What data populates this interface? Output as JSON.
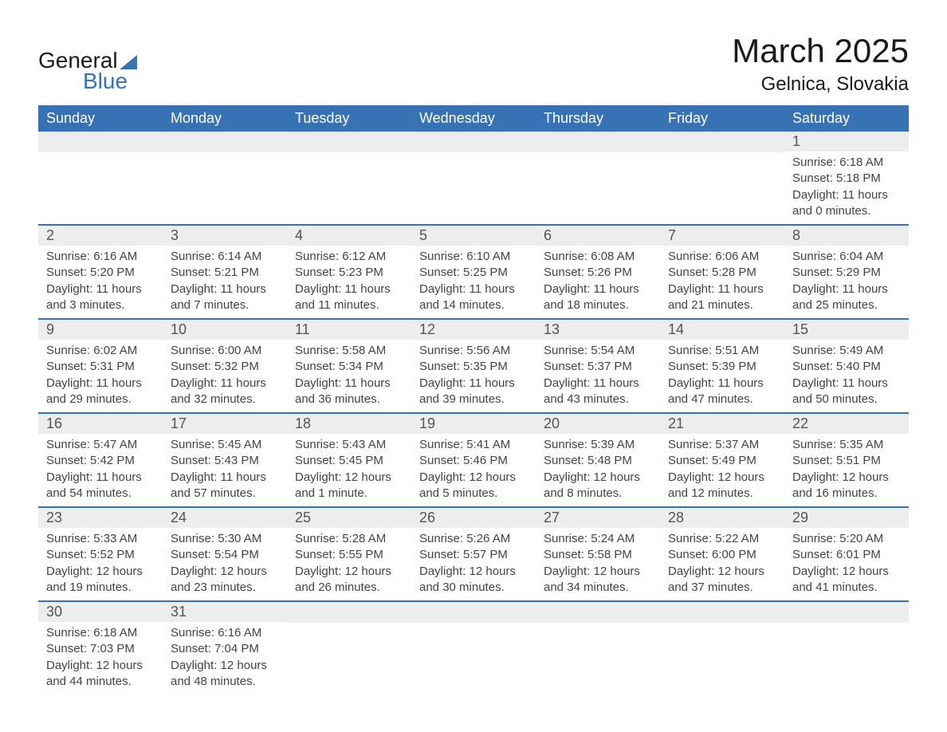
{
  "logo": {
    "text1": "General",
    "text2": "Blue",
    "triangle_color": "#3773b4",
    "text1_color": "#1a1a1a",
    "text2_color": "#3773b4"
  },
  "title": "March 2025",
  "location": "Gelnica, Slovakia",
  "colors": {
    "header_bg": "#3773b4",
    "header_text": "#ffffff",
    "daynum_bg": "#ededed",
    "daynum_text": "#555555",
    "body_text": "#444444",
    "row_border": "#3773b4",
    "background": "#ffffff"
  },
  "fonts": {
    "title_size": 42,
    "location_size": 24,
    "header_size": 18,
    "daynum_size": 18,
    "detail_size": 15
  },
  "day_headers": [
    "Sunday",
    "Monday",
    "Tuesday",
    "Wednesday",
    "Thursday",
    "Friday",
    "Saturday"
  ],
  "weeks": [
    [
      {
        "empty": true
      },
      {
        "empty": true
      },
      {
        "empty": true
      },
      {
        "empty": true
      },
      {
        "empty": true
      },
      {
        "empty": true
      },
      {
        "day": "1",
        "sunrise": "Sunrise: 6:18 AM",
        "sunset": "Sunset: 5:18 PM",
        "daylight1": "Daylight: 11 hours",
        "daylight2": "and 0 minutes."
      }
    ],
    [
      {
        "day": "2",
        "sunrise": "Sunrise: 6:16 AM",
        "sunset": "Sunset: 5:20 PM",
        "daylight1": "Daylight: 11 hours",
        "daylight2": "and 3 minutes."
      },
      {
        "day": "3",
        "sunrise": "Sunrise: 6:14 AM",
        "sunset": "Sunset: 5:21 PM",
        "daylight1": "Daylight: 11 hours",
        "daylight2": "and 7 minutes."
      },
      {
        "day": "4",
        "sunrise": "Sunrise: 6:12 AM",
        "sunset": "Sunset: 5:23 PM",
        "daylight1": "Daylight: 11 hours",
        "daylight2": "and 11 minutes."
      },
      {
        "day": "5",
        "sunrise": "Sunrise: 6:10 AM",
        "sunset": "Sunset: 5:25 PM",
        "daylight1": "Daylight: 11 hours",
        "daylight2": "and 14 minutes."
      },
      {
        "day": "6",
        "sunrise": "Sunrise: 6:08 AM",
        "sunset": "Sunset: 5:26 PM",
        "daylight1": "Daylight: 11 hours",
        "daylight2": "and 18 minutes."
      },
      {
        "day": "7",
        "sunrise": "Sunrise: 6:06 AM",
        "sunset": "Sunset: 5:28 PM",
        "daylight1": "Daylight: 11 hours",
        "daylight2": "and 21 minutes."
      },
      {
        "day": "8",
        "sunrise": "Sunrise: 6:04 AM",
        "sunset": "Sunset: 5:29 PM",
        "daylight1": "Daylight: 11 hours",
        "daylight2": "and 25 minutes."
      }
    ],
    [
      {
        "day": "9",
        "sunrise": "Sunrise: 6:02 AM",
        "sunset": "Sunset: 5:31 PM",
        "daylight1": "Daylight: 11 hours",
        "daylight2": "and 29 minutes."
      },
      {
        "day": "10",
        "sunrise": "Sunrise: 6:00 AM",
        "sunset": "Sunset: 5:32 PM",
        "daylight1": "Daylight: 11 hours",
        "daylight2": "and 32 minutes."
      },
      {
        "day": "11",
        "sunrise": "Sunrise: 5:58 AM",
        "sunset": "Sunset: 5:34 PM",
        "daylight1": "Daylight: 11 hours",
        "daylight2": "and 36 minutes."
      },
      {
        "day": "12",
        "sunrise": "Sunrise: 5:56 AM",
        "sunset": "Sunset: 5:35 PM",
        "daylight1": "Daylight: 11 hours",
        "daylight2": "and 39 minutes."
      },
      {
        "day": "13",
        "sunrise": "Sunrise: 5:54 AM",
        "sunset": "Sunset: 5:37 PM",
        "daylight1": "Daylight: 11 hours",
        "daylight2": "and 43 minutes."
      },
      {
        "day": "14",
        "sunrise": "Sunrise: 5:51 AM",
        "sunset": "Sunset: 5:39 PM",
        "daylight1": "Daylight: 11 hours",
        "daylight2": "and 47 minutes."
      },
      {
        "day": "15",
        "sunrise": "Sunrise: 5:49 AM",
        "sunset": "Sunset: 5:40 PM",
        "daylight1": "Daylight: 11 hours",
        "daylight2": "and 50 minutes."
      }
    ],
    [
      {
        "day": "16",
        "sunrise": "Sunrise: 5:47 AM",
        "sunset": "Sunset: 5:42 PM",
        "daylight1": "Daylight: 11 hours",
        "daylight2": "and 54 minutes."
      },
      {
        "day": "17",
        "sunrise": "Sunrise: 5:45 AM",
        "sunset": "Sunset: 5:43 PM",
        "daylight1": "Daylight: 11 hours",
        "daylight2": "and 57 minutes."
      },
      {
        "day": "18",
        "sunrise": "Sunrise: 5:43 AM",
        "sunset": "Sunset: 5:45 PM",
        "daylight1": "Daylight: 12 hours",
        "daylight2": "and 1 minute."
      },
      {
        "day": "19",
        "sunrise": "Sunrise: 5:41 AM",
        "sunset": "Sunset: 5:46 PM",
        "daylight1": "Daylight: 12 hours",
        "daylight2": "and 5 minutes."
      },
      {
        "day": "20",
        "sunrise": "Sunrise: 5:39 AM",
        "sunset": "Sunset: 5:48 PM",
        "daylight1": "Daylight: 12 hours",
        "daylight2": "and 8 minutes."
      },
      {
        "day": "21",
        "sunrise": "Sunrise: 5:37 AM",
        "sunset": "Sunset: 5:49 PM",
        "daylight1": "Daylight: 12 hours",
        "daylight2": "and 12 minutes."
      },
      {
        "day": "22",
        "sunrise": "Sunrise: 5:35 AM",
        "sunset": "Sunset: 5:51 PM",
        "daylight1": "Daylight: 12 hours",
        "daylight2": "and 16 minutes."
      }
    ],
    [
      {
        "day": "23",
        "sunrise": "Sunrise: 5:33 AM",
        "sunset": "Sunset: 5:52 PM",
        "daylight1": "Daylight: 12 hours",
        "daylight2": "and 19 minutes."
      },
      {
        "day": "24",
        "sunrise": "Sunrise: 5:30 AM",
        "sunset": "Sunset: 5:54 PM",
        "daylight1": "Daylight: 12 hours",
        "daylight2": "and 23 minutes."
      },
      {
        "day": "25",
        "sunrise": "Sunrise: 5:28 AM",
        "sunset": "Sunset: 5:55 PM",
        "daylight1": "Daylight: 12 hours",
        "daylight2": "and 26 minutes."
      },
      {
        "day": "26",
        "sunrise": "Sunrise: 5:26 AM",
        "sunset": "Sunset: 5:57 PM",
        "daylight1": "Daylight: 12 hours",
        "daylight2": "and 30 minutes."
      },
      {
        "day": "27",
        "sunrise": "Sunrise: 5:24 AM",
        "sunset": "Sunset: 5:58 PM",
        "daylight1": "Daylight: 12 hours",
        "daylight2": "and 34 minutes."
      },
      {
        "day": "28",
        "sunrise": "Sunrise: 5:22 AM",
        "sunset": "Sunset: 6:00 PM",
        "daylight1": "Daylight: 12 hours",
        "daylight2": "and 37 minutes."
      },
      {
        "day": "29",
        "sunrise": "Sunrise: 5:20 AM",
        "sunset": "Sunset: 6:01 PM",
        "daylight1": "Daylight: 12 hours",
        "daylight2": "and 41 minutes."
      }
    ],
    [
      {
        "day": "30",
        "sunrise": "Sunrise: 6:18 AM",
        "sunset": "Sunset: 7:03 PM",
        "daylight1": "Daylight: 12 hours",
        "daylight2": "and 44 minutes."
      },
      {
        "day": "31",
        "sunrise": "Sunrise: 6:16 AM",
        "sunset": "Sunset: 7:04 PM",
        "daylight1": "Daylight: 12 hours",
        "daylight2": "and 48 minutes."
      },
      {
        "empty": true
      },
      {
        "empty": true
      },
      {
        "empty": true
      },
      {
        "empty": true
      },
      {
        "empty": true
      }
    ]
  ]
}
